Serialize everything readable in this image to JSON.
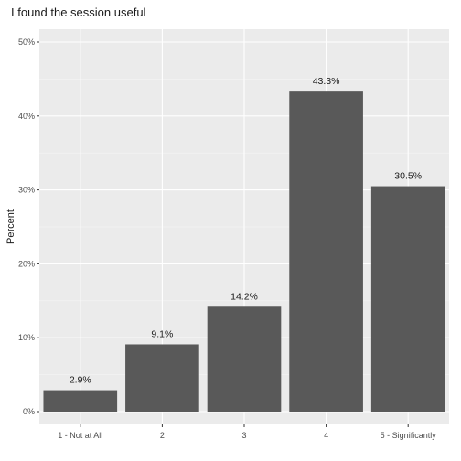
{
  "chart_data": {
    "type": "bar",
    "title": "I found the session useful",
    "xlabel": "",
    "ylabel": "Percent",
    "categories": [
      "1 - Not at All",
      "2",
      "3",
      "4",
      "5 - Significantly"
    ],
    "values": [
      2.9,
      9.1,
      14.2,
      43.3,
      30.5
    ],
    "data_labels": [
      "2.9%",
      "9.1%",
      "14.2%",
      "43.3%",
      "30.5%"
    ],
    "yticks": [
      0,
      10,
      20,
      30,
      40,
      50
    ],
    "ytick_labels": [
      "0%",
      "10%",
      "20%",
      "30%",
      "40%",
      "50%"
    ],
    "ylim": [
      0,
      50
    ],
    "grid": true,
    "legend": "none",
    "colors": {
      "bar": "#595959",
      "panel": "#ebebeb",
      "grid_major": "#ffffff",
      "grid_minor": "#f5f5f5"
    }
  }
}
